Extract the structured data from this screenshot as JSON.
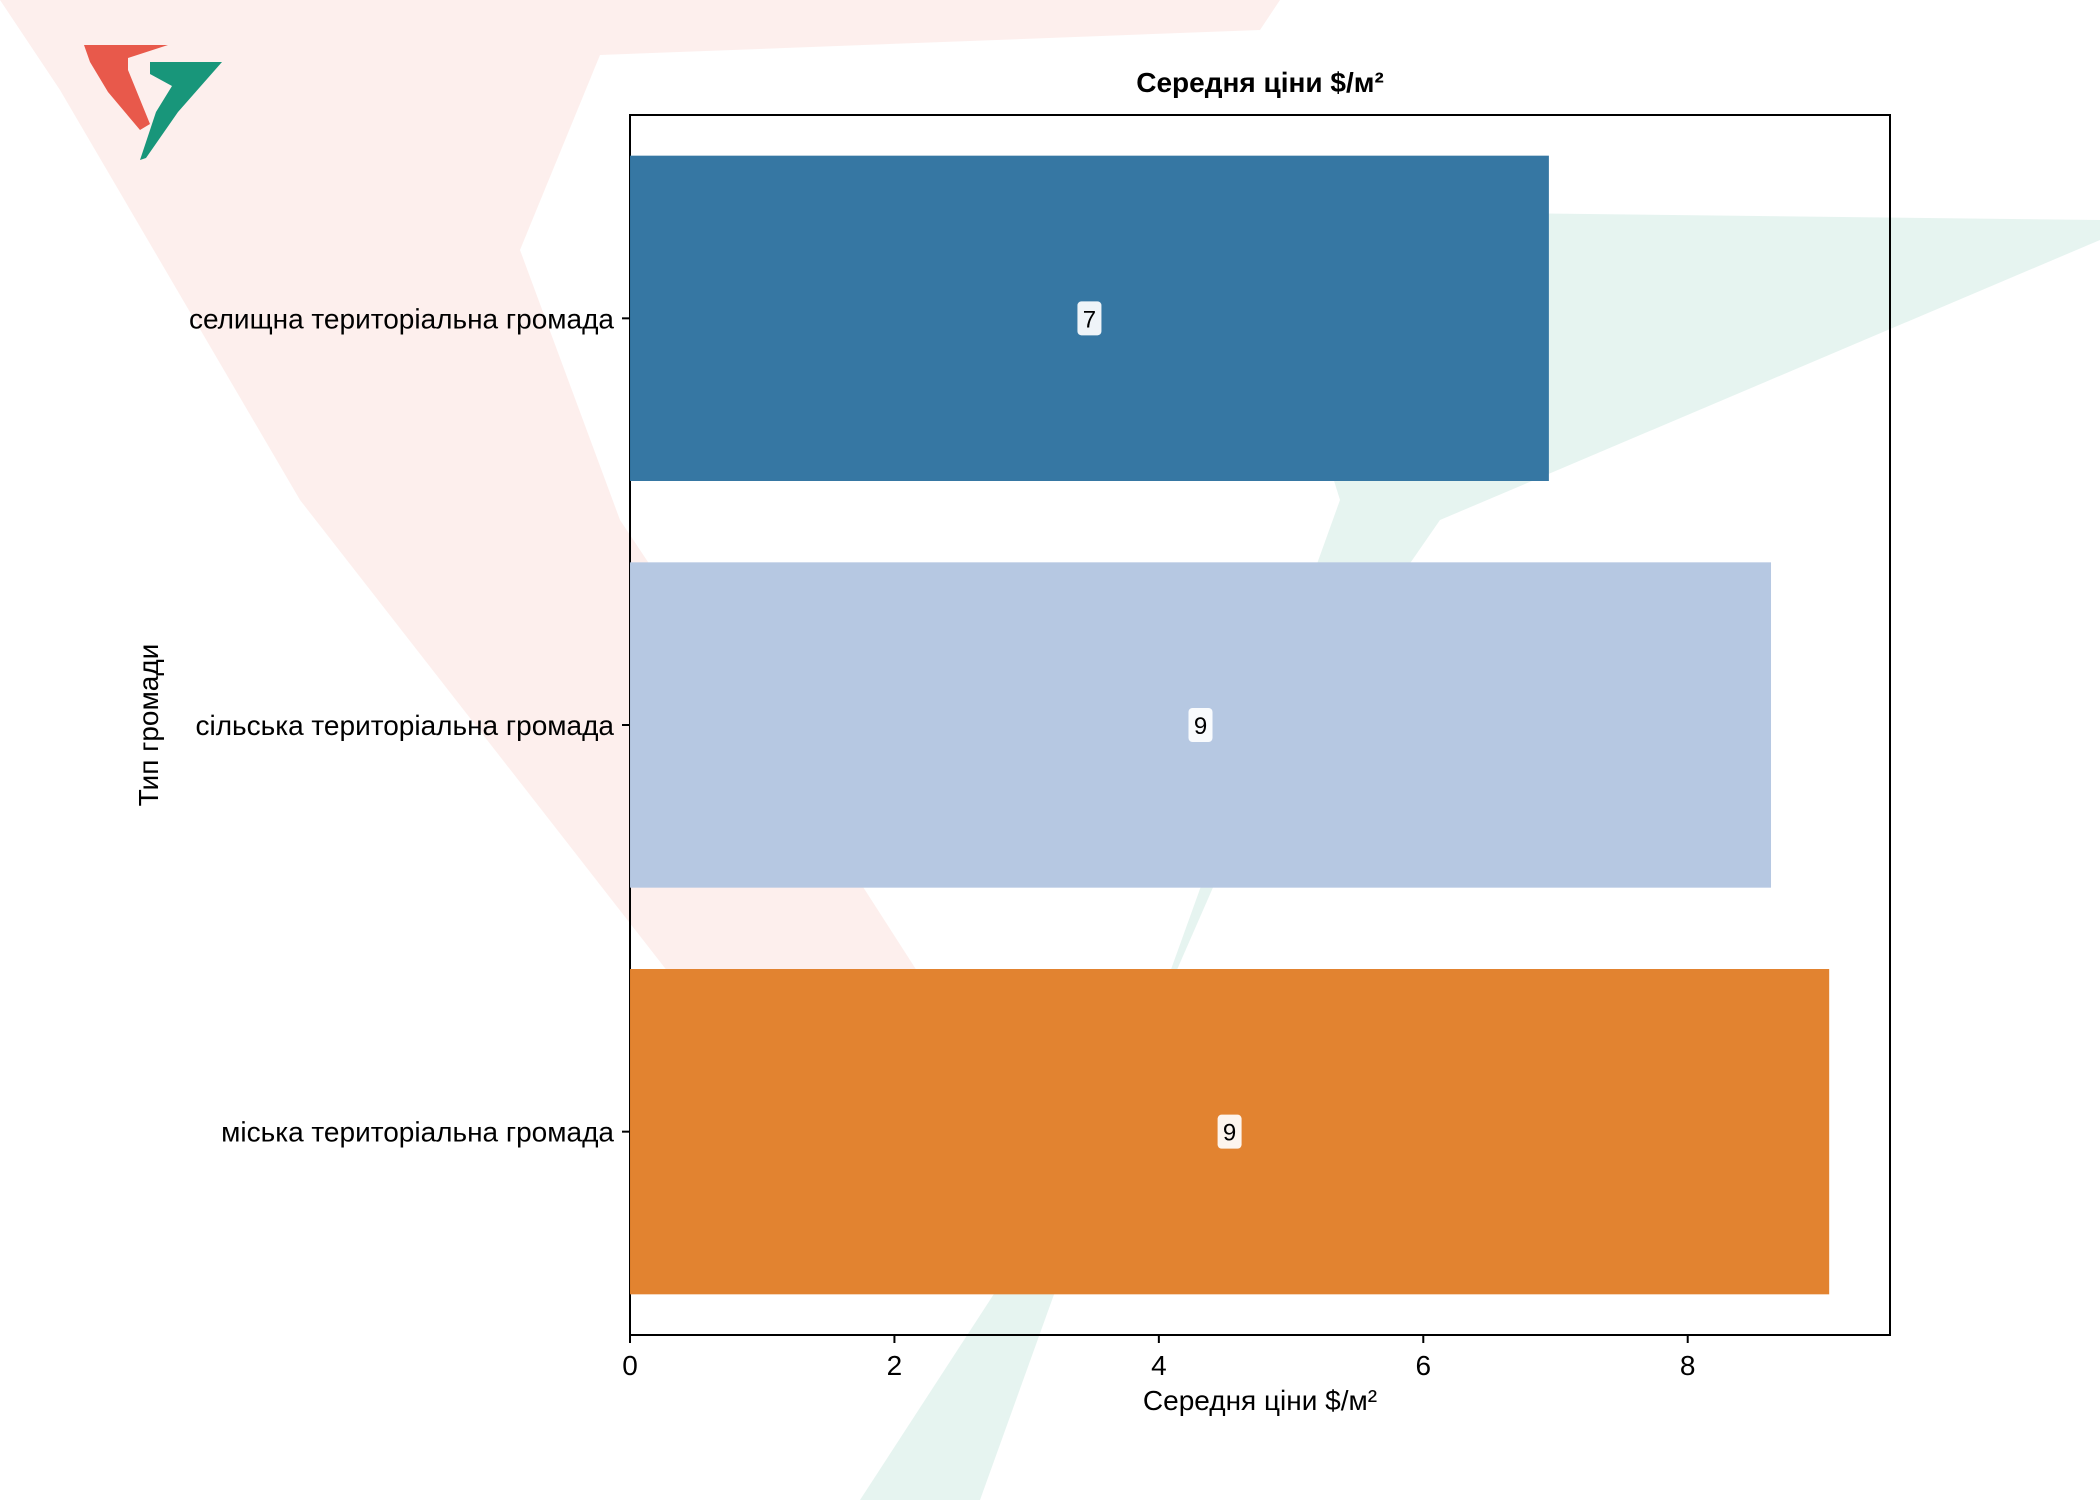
{
  "chart_data": {
    "type": "bar",
    "orientation": "horizontal",
    "title": "Середня ціни $/м²",
    "xlabel": "Середня ціни $/м²",
    "ylabel": "Тип громади",
    "categories": [
      "селищна територіальна громада",
      "сільська територіальна громада",
      "міська територіальна громада"
    ],
    "values": [
      6.95,
      8.63,
      9.07
    ],
    "data_labels": [
      "7",
      "9",
      "9"
    ],
    "bar_colors": [
      "#3274a1",
      "#b5c7e1",
      "#e1812c"
    ],
    "xticks": [
      "0",
      "2",
      "4",
      "6",
      "8"
    ],
    "xlim": [
      0,
      9.53
    ],
    "grid": false,
    "legend": false
  },
  "watermark": {
    "logo_colors": [
      "#e8594b",
      "#18967a"
    ]
  }
}
